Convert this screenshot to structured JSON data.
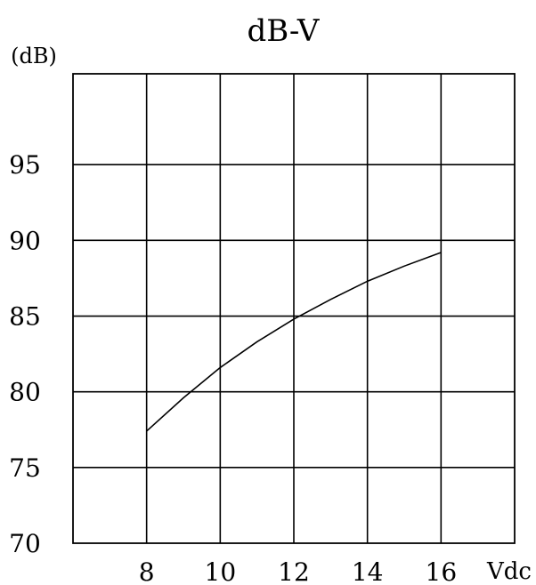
{
  "chart_data": {
    "type": "line",
    "title": "dB-V",
    "ylabel": "(dB)",
    "xlabel": "Vdc",
    "xlim": [
      6,
      18
    ],
    "ylim": [
      70,
      101
    ],
    "x_ticks": [
      8,
      10,
      12,
      14,
      16
    ],
    "x_tick_labels": [
      "8",
      "10",
      "12",
      "14",
      "16"
    ],
    "y_ticks": [
      70,
      75,
      80,
      85,
      90,
      95
    ],
    "y_tick_labels": [
      "70",
      "75",
      "80",
      "85",
      "90",
      "95"
    ],
    "grid": true,
    "series": [
      {
        "x": [
          8,
          9,
          10,
          11,
          12,
          13,
          14,
          15,
          16
        ],
        "y": [
          77.4,
          79.6,
          81.6,
          83.3,
          84.8,
          86.1,
          87.3,
          88.3,
          89.2
        ]
      }
    ]
  }
}
